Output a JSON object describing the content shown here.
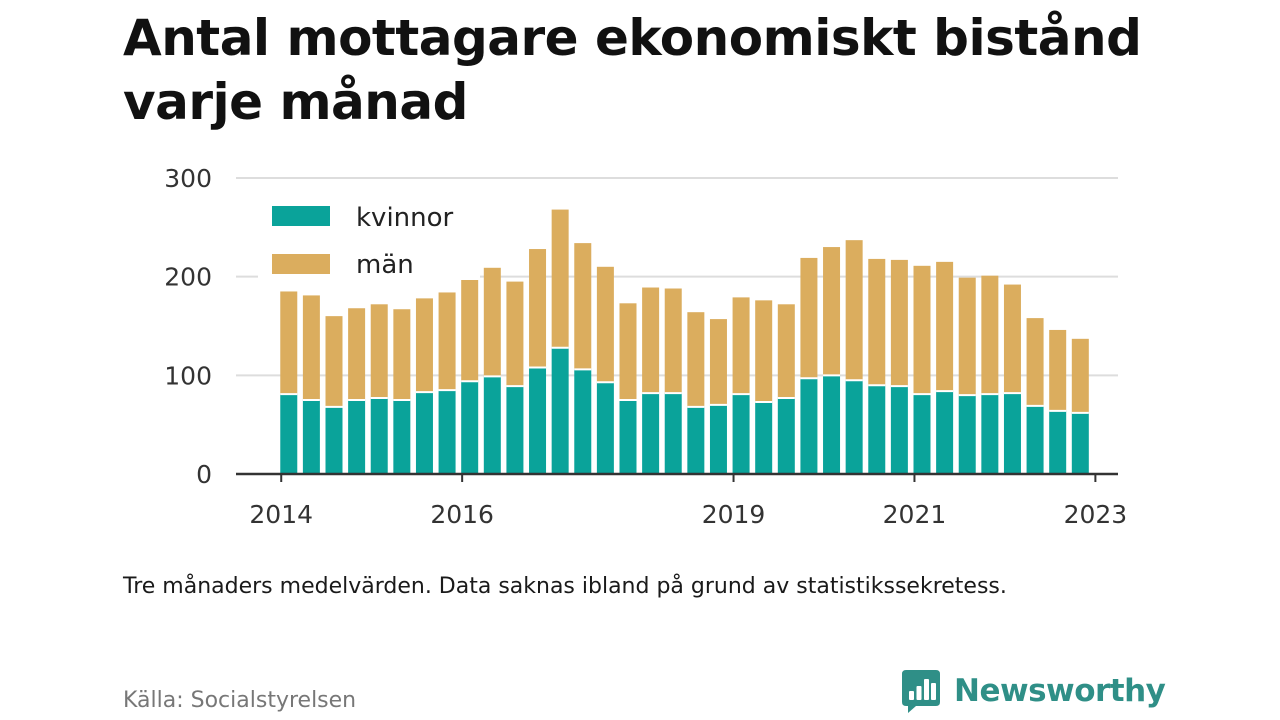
{
  "title": "Antal mottagare ekonomiskt bistånd varje månad",
  "note": "Tre månaders medelvärden. Data saknas ibland på grund av statistikssekretess.",
  "source": "Källa: Socialstyrelsen",
  "brand": "Newsworthy",
  "colors": {
    "kvinnor": "#0aa39a",
    "man": "#dbad5e",
    "grid": "#dddddd",
    "axis": "#333333"
  },
  "chart_data": {
    "type": "bar",
    "stacked": true,
    "x": [
      "2014-07",
      "2014-10",
      "2015-01",
      "2015-04",
      "2015-07",
      "2015-10",
      "2016-01",
      "2016-04",
      "2016-07",
      "2016-10",
      "2017-01",
      "2017-04",
      "2017-07",
      "2017-10",
      "2018-01",
      "2018-04",
      "2018-07",
      "2018-10",
      "2019-01",
      "2019-04",
      "2019-07",
      "2019-10",
      "2020-01",
      "2020-04",
      "2020-07",
      "2020-10",
      "2021-01",
      "2021-04",
      "2021-07",
      "2021-10",
      "2022-01",
      "2022-04",
      "2022-07",
      "2022-10",
      "2023-01",
      "2023-04"
    ],
    "series": [
      {
        "name": "kvinnor",
        "values": [
          81,
          75,
          68,
          75,
          77,
          75,
          83,
          85,
          94,
          99,
          89,
          108,
          128,
          106,
          93,
          75,
          82,
          82,
          68,
          70,
          81,
          73,
          77,
          97,
          100,
          95,
          90,
          89,
          81,
          84,
          80,
          81,
          82,
          69,
          64,
          62
        ]
      },
      {
        "name": "män",
        "values": [
          104,
          106,
          92,
          93,
          95,
          92,
          95,
          99,
          107,
          110,
          106,
          120,
          140,
          128,
          117,
          98,
          107,
          106,
          96,
          87,
          98,
          103,
          95,
          122,
          130,
          142,
          128,
          128,
          130,
          131,
          119,
          120,
          110,
          89,
          82,
          75
        ]
      }
    ],
    "xticks": [
      "2014",
      "2016",
      "2019",
      "2021",
      "2023"
    ],
    "yticks": [
      "0",
      "100",
      "200",
      "300"
    ],
    "ylim": [
      0,
      300
    ],
    "xlim": [
      "2014-01",
      "2023-10"
    ],
    "legend_position": "top-left",
    "grid": true,
    "xlabel": "",
    "ylabel": ""
  }
}
